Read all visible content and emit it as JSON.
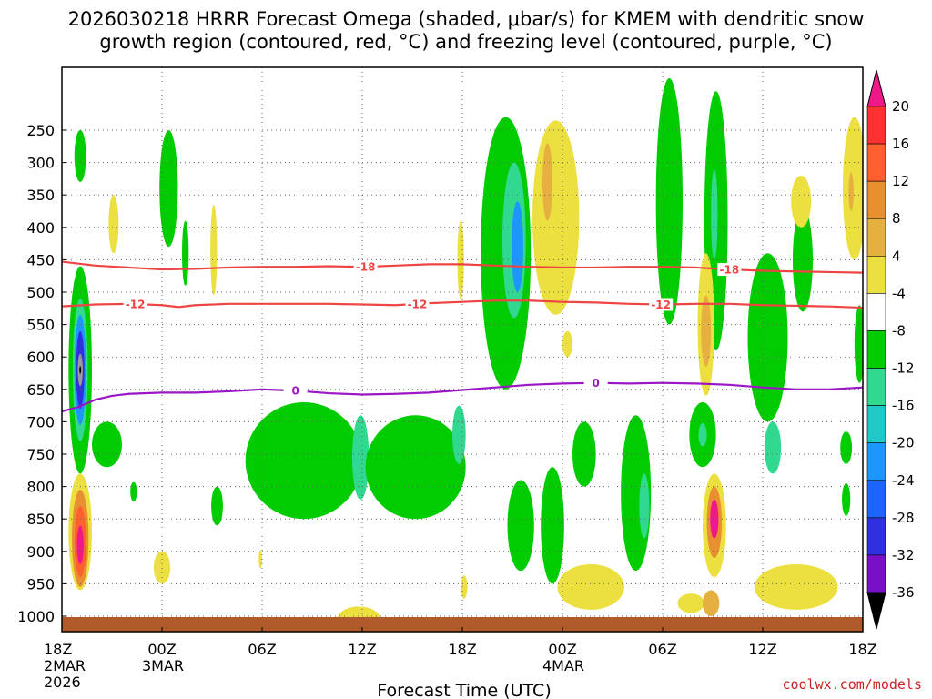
{
  "chart_data": {
    "type": "heatmap",
    "title_line1": "2026030218 HRRR Forecast Omega (shaded, μbar/s) for KMEM with dendritic snow",
    "title_line2": "growth region (contoured, red, °C) and freezing level (contoured, purple, °C)",
    "xlabel": "Forecast Time (UTC)",
    "credit": "coolwx.com/models",
    "x_range_hours": [
      0,
      48
    ],
    "x_ticks": [
      {
        "hour": 0,
        "lines": [
          "18Z",
          "2MAR",
          "2026"
        ]
      },
      {
        "hour": 6,
        "lines": [
          "00Z",
          "3MAR"
        ]
      },
      {
        "hour": 12,
        "lines": [
          "06Z"
        ]
      },
      {
        "hour": 18,
        "lines": [
          "12Z"
        ]
      },
      {
        "hour": 24,
        "lines": [
          "18Z"
        ]
      },
      {
        "hour": 30,
        "lines": [
          "00Z",
          "4MAR"
        ]
      },
      {
        "hour": 36,
        "lines": [
          "06Z"
        ]
      },
      {
        "hour": 42,
        "lines": [
          "12Z"
        ]
      },
      {
        "hour": 48,
        "lines": [
          "18Z"
        ]
      }
    ],
    "y_range_hpa": [
      1025,
      200
    ],
    "y_ticks": [
      250,
      300,
      350,
      400,
      450,
      500,
      550,
      600,
      650,
      700,
      750,
      800,
      850,
      900,
      950,
      1000
    ],
    "colorbar": {
      "labels": [
        "20",
        "16",
        "12",
        "8",
        "4",
        "-4",
        "-8",
        "-12",
        "-16",
        "-20",
        "-24",
        "-28",
        "-32",
        "-36"
      ],
      "colors": {
        "c_m36": "#9a9a9a",
        "c_m32": "#a000c8",
        "c_m28": "#7810c8",
        "c_m24": "#3030e0",
        "c_m20": "#1e64ff",
        "c_m16": "#1e96ff",
        "c_m12": "#20c8c8",
        "c_m8": "#30d890",
        "c_m4": "#00cc00",
        "c_zero": "#ffffff",
        "c_4": "#ece040",
        "c_8": "#e6b040",
        "c_12": "#e89030",
        "c_16": "#ff6030",
        "c_20": "#ff3030",
        "c_top": "#ee1888",
        "c_bottom": "#000000"
      }
    },
    "ground_color": "#b05a2a",
    "contours": [
      {
        "name": "-18",
        "color": "#ee4444",
        "labels_at_hours": [
          18.2,
          40.0
        ],
        "points": [
          [
            0,
            453
          ],
          [
            2,
            459
          ],
          [
            4,
            462
          ],
          [
            6,
            465
          ],
          [
            8,
            464
          ],
          [
            10,
            462
          ],
          [
            12,
            461
          ],
          [
            14,
            461
          ],
          [
            16,
            460
          ],
          [
            18,
            461
          ],
          [
            20,
            459
          ],
          [
            22,
            457
          ],
          [
            24,
            457
          ],
          [
            26,
            459
          ],
          [
            28,
            461
          ],
          [
            30,
            462
          ],
          [
            32,
            462
          ],
          [
            34,
            461
          ],
          [
            36,
            461
          ],
          [
            38,
            462
          ],
          [
            40,
            465
          ],
          [
            42,
            467
          ],
          [
            44,
            468
          ],
          [
            46,
            469
          ],
          [
            48,
            470
          ]
        ]
      },
      {
        "name": "-12",
        "color": "#ee4444",
        "labels_at_hours": [
          4.4,
          21.3,
          35.9
        ],
        "points": [
          [
            0,
            522
          ],
          [
            2,
            519
          ],
          [
            4,
            518
          ],
          [
            6,
            520
          ],
          [
            7,
            523
          ],
          [
            8,
            520
          ],
          [
            10,
            518
          ],
          [
            12,
            518
          ],
          [
            14,
            518
          ],
          [
            16,
            518
          ],
          [
            18,
            519
          ],
          [
            20,
            520
          ],
          [
            22,
            517
          ],
          [
            24,
            515
          ],
          [
            26,
            513
          ],
          [
            28,
            513
          ],
          [
            30,
            515
          ],
          [
            32,
            516
          ],
          [
            34,
            518
          ],
          [
            36,
            519
          ],
          [
            38,
            518
          ],
          [
            40,
            518
          ],
          [
            42,
            520
          ],
          [
            44,
            521
          ],
          [
            46,
            522
          ],
          [
            48,
            524
          ]
        ]
      },
      {
        "name": "0",
        "color": "#9b16c4",
        "labels_at_hours": [
          14.0,
          32.0
        ],
        "points": [
          [
            0,
            684
          ],
          [
            1,
            677
          ],
          [
            2,
            666
          ],
          [
            3,
            660
          ],
          [
            4,
            657
          ],
          [
            6,
            655
          ],
          [
            8,
            655
          ],
          [
            10,
            653
          ],
          [
            12,
            650
          ],
          [
            14,
            652
          ],
          [
            16,
            656
          ],
          [
            18,
            658
          ],
          [
            20,
            657
          ],
          [
            22,
            655
          ],
          [
            24,
            651
          ],
          [
            26,
            647
          ],
          [
            28,
            643
          ],
          [
            30,
            641
          ],
          [
            32,
            640
          ],
          [
            34,
            641
          ],
          [
            36,
            640
          ],
          [
            38,
            641
          ],
          [
            40,
            643
          ],
          [
            42,
            647
          ],
          [
            44,
            650
          ],
          [
            46,
            650
          ],
          [
            48,
            647
          ]
        ]
      }
    ],
    "shaded_blobs": [
      {
        "hour": 1.1,
        "hpa": 290,
        "rh": 0.35,
        "rp": 40,
        "level": "c_m4"
      },
      {
        "hour": 1.1,
        "hpa": 620,
        "rh": 0.7,
        "rp": 160,
        "level": "c_m4"
      },
      {
        "hour": 1.1,
        "hpa": 620,
        "rh": 0.45,
        "rp": 110,
        "level": "c_m8"
      },
      {
        "hour": 1.1,
        "hpa": 620,
        "rh": 0.35,
        "rp": 85,
        "level": "c_m16"
      },
      {
        "hour": 1.1,
        "hpa": 620,
        "rh": 0.25,
        "rp": 60,
        "level": "c_m24"
      },
      {
        "hour": 1.1,
        "hpa": 620,
        "rh": 0.15,
        "rp": 25,
        "level": "c_m36"
      },
      {
        "hour": 1.1,
        "hpa": 620,
        "rh": 0.05,
        "rp": 6,
        "level": "c_bottom"
      },
      {
        "hour": 1.1,
        "hpa": 870,
        "rh": 0.7,
        "rp": 90,
        "level": "c_4"
      },
      {
        "hour": 1.1,
        "hpa": 880,
        "rh": 0.5,
        "rp": 75,
        "level": "c_12"
      },
      {
        "hour": 1.1,
        "hpa": 885,
        "rh": 0.35,
        "rp": 55,
        "level": "c_16"
      },
      {
        "hour": 1.1,
        "hpa": 890,
        "rh": 0.2,
        "rp": 30,
        "level": "c_top"
      },
      {
        "hour": 3.1,
        "hpa": 395,
        "rh": 0.3,
        "rp": 45,
        "level": "c_4"
      },
      {
        "hour": 2.7,
        "hpa": 735,
        "rh": 0.9,
        "rp": 35,
        "level": "c_m4"
      },
      {
        "hour": 4.3,
        "hpa": 808,
        "rh": 0.2,
        "rp": 15,
        "level": "c_m4"
      },
      {
        "hour": 6.0,
        "hpa": 925,
        "rh": 0.5,
        "rp": 25,
        "level": "c_4"
      },
      {
        "hour": 6.0,
        "hpa": 1015,
        "rh": 0.2,
        "rp": 5,
        "level": "c_m4"
      },
      {
        "hour": 6.4,
        "hpa": 340,
        "rh": 0.55,
        "rp": 90,
        "level": "c_m4"
      },
      {
        "hour": 7.4,
        "hpa": 440,
        "rh": 0.2,
        "rp": 50,
        "level": "c_m4"
      },
      {
        "hour": 9.1,
        "hpa": 435,
        "rh": 0.2,
        "rp": 70,
        "level": "c_4"
      },
      {
        "hour": 9.3,
        "hpa": 830,
        "rh": 0.35,
        "rp": 30,
        "level": "c_m4"
      },
      {
        "hour": 11.9,
        "hpa": 912,
        "rh": 0.1,
        "rp": 14,
        "level": "c_4"
      },
      {
        "hour": 14.5,
        "hpa": 760,
        "rh": 3.5,
        "rp": 90,
        "level": "c_m4"
      },
      {
        "hour": 16.2,
        "hpa": 750,
        "rh": 0.8,
        "rp": 55,
        "level": "c_m4"
      },
      {
        "hour": 17.9,
        "hpa": 755,
        "rh": 0.5,
        "rp": 65,
        "level": "c_m8"
      },
      {
        "hour": 21.2,
        "hpa": 770,
        "rh": 3.0,
        "rp": 80,
        "level": "c_m4"
      },
      {
        "hour": 23.8,
        "hpa": 720,
        "rh": 0.4,
        "rp": 45,
        "level": "c_m8"
      },
      {
        "hour": 23.9,
        "hpa": 450,
        "rh": 0.2,
        "rp": 60,
        "level": "c_4"
      },
      {
        "hour": 17.8,
        "hpa": 1005,
        "rh": 1.3,
        "rp": 20,
        "level": "c_4"
      },
      {
        "hour": 24.1,
        "hpa": 955,
        "rh": 0.2,
        "rp": 18,
        "level": "c_4"
      },
      {
        "hour": 26.6,
        "hpa": 440,
        "rh": 1.5,
        "rp": 210,
        "level": "c_m4"
      },
      {
        "hour": 27.1,
        "hpa": 420,
        "rh": 0.7,
        "rp": 120,
        "level": "c_m8"
      },
      {
        "hour": 27.3,
        "hpa": 430,
        "rh": 0.35,
        "rp": 70,
        "level": "c_m16"
      },
      {
        "hour": 29.6,
        "hpa": 385,
        "rh": 1.4,
        "rp": 150,
        "level": "c_4"
      },
      {
        "hour": 29.1,
        "hpa": 330,
        "rh": 0.3,
        "rp": 60,
        "level": "c_8"
      },
      {
        "hour": 29.4,
        "hpa": 860,
        "rh": 0.7,
        "rp": 90,
        "level": "c_m4"
      },
      {
        "hour": 31.3,
        "hpa": 750,
        "rh": 0.7,
        "rp": 50,
        "level": "c_m4"
      },
      {
        "hour": 27.5,
        "hpa": 860,
        "rh": 0.8,
        "rp": 70,
        "level": "c_m4"
      },
      {
        "hour": 30.3,
        "hpa": 580,
        "rh": 0.3,
        "rp": 20,
        "level": "c_4"
      },
      {
        "hour": 31.7,
        "hpa": 955,
        "rh": 2.0,
        "rp": 35,
        "level": "c_4"
      },
      {
        "hour": 34.4,
        "hpa": 810,
        "rh": 0.9,
        "rp": 120,
        "level": "c_m4"
      },
      {
        "hour": 34.9,
        "hpa": 830,
        "rh": 0.3,
        "rp": 50,
        "level": "c_m8"
      },
      {
        "hour": 36.4,
        "hpa": 360,
        "rh": 0.8,
        "rp": 190,
        "level": "c_m4"
      },
      {
        "hour": 39.2,
        "hpa": 390,
        "rh": 0.7,
        "rp": 200,
        "level": "c_m4"
      },
      {
        "hour": 39.1,
        "hpa": 380,
        "rh": 0.2,
        "rp": 70,
        "level": "c_m8"
      },
      {
        "hour": 38.6,
        "hpa": 550,
        "rh": 0.5,
        "rp": 110,
        "level": "c_4"
      },
      {
        "hour": 38.6,
        "hpa": 560,
        "rh": 0.3,
        "rp": 55,
        "level": "c_8"
      },
      {
        "hour": 38.4,
        "hpa": 720,
        "rh": 0.8,
        "rp": 50,
        "level": "c_m4"
      },
      {
        "hour": 38.4,
        "hpa": 720,
        "rh": 0.25,
        "rp": 18,
        "level": "c_m8"
      },
      {
        "hour": 39.1,
        "hpa": 860,
        "rh": 0.7,
        "rp": 80,
        "level": "c_4"
      },
      {
        "hour": 39.1,
        "hpa": 855,
        "rh": 0.45,
        "rp": 55,
        "level": "c_12"
      },
      {
        "hour": 39.1,
        "hpa": 850,
        "rh": 0.25,
        "rp": 30,
        "level": "c_top"
      },
      {
        "hour": 42.3,
        "hpa": 570,
        "rh": 1.2,
        "rp": 130,
        "level": "c_m4"
      },
      {
        "hour": 42.6,
        "hpa": 740,
        "rh": 0.5,
        "rp": 40,
        "level": "c_m8"
      },
      {
        "hour": 44.4,
        "hpa": 450,
        "rh": 0.6,
        "rp": 80,
        "level": "c_m4"
      },
      {
        "hour": 44.3,
        "hpa": 360,
        "rh": 0.6,
        "rp": 40,
        "level": "c_4"
      },
      {
        "hour": 44.0,
        "hpa": 955,
        "rh": 2.5,
        "rp": 35,
        "level": "c_4"
      },
      {
        "hour": 37.7,
        "hpa": 980,
        "rh": 0.8,
        "rp": 15,
        "level": "c_4"
      },
      {
        "hour": 38.9,
        "hpa": 980,
        "rh": 0.5,
        "rp": 20,
        "level": "c_8"
      },
      {
        "hour": 47.5,
        "hpa": 340,
        "rh": 0.7,
        "rp": 110,
        "level": "c_4"
      },
      {
        "hour": 47.3,
        "hpa": 345,
        "rh": 0.15,
        "rp": 30,
        "level": "c_8"
      },
      {
        "hour": 47.8,
        "hpa": 580,
        "rh": 0.3,
        "rp": 60,
        "level": "c_m4"
      },
      {
        "hour": 47.0,
        "hpa": 820,
        "rh": 0.25,
        "rp": 25,
        "level": "c_m4"
      },
      {
        "hour": 47.0,
        "hpa": 740,
        "rh": 0.35,
        "rp": 25,
        "level": "c_m4"
      }
    ]
  }
}
